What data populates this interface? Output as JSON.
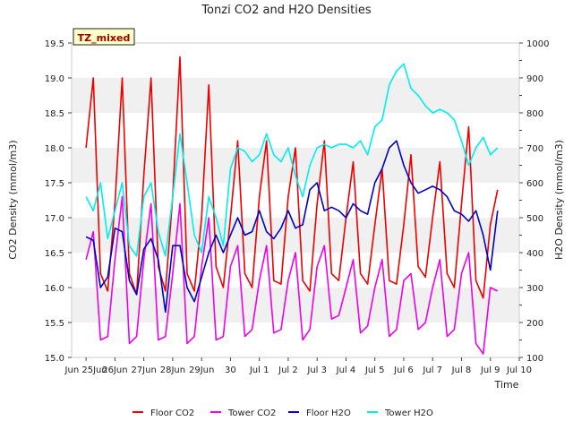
{
  "chart_data": {
    "type": "line",
    "title": "Tonzi CO2 and H2O Densities",
    "badge": "TZ_mixed",
    "xlabel": "Time",
    "ylabel_left": "CO2 Density (mmol/m3)",
    "ylabel_right": "H2O Density (mmol/m3)",
    "xlim": [
      "2024-06-24 12:00",
      "2024-07-10 00:00"
    ],
    "x_tick_labels": [
      "Jun 25Jun",
      "26Jun",
      "27Jun",
      "28Jun",
      "29Jun",
      "30",
      "Jul 1",
      "Jul 2",
      "Jul 3",
      "Jul 4",
      "Jul 5",
      "Jul 6",
      "Jul 7",
      "Jul 8",
      "Jul 9",
      "Jul 10"
    ],
    "ylim_left": [
      15.0,
      19.5
    ],
    "y_ticks_left": [
      "15.0",
      "15.5",
      "16.0",
      "16.5",
      "17.0",
      "17.5",
      "18.0",
      "18.5",
      "19.0",
      "19.5"
    ],
    "ylim_right": [
      100,
      1000
    ],
    "y_ticks_right": [
      "100",
      "200",
      "300",
      "400",
      "500",
      "600",
      "700",
      "800",
      "900",
      "1000"
    ],
    "grid": "horizontal bands",
    "legend_position": "bottom",
    "series": [
      {
        "name": "Floor CO2",
        "axis": "left",
        "color": "#ee0000",
        "x": [
          "Jun 25 00:00",
          "Jun 25 06:00",
          "Jun 25 12:00",
          "Jun 25 18:00",
          "Jun 26 00:00",
          "Jun 26 06:00",
          "Jun 26 12:00",
          "Jun 26 18:00",
          "Jun 27 00:00",
          "Jun 27 06:00",
          "Jun 27 12:00",
          "Jun 27 18:00",
          "Jun 28 00:00",
          "Jun 28 06:00",
          "Jun 28 12:00",
          "Jun 28 18:00",
          "Jun 29 00:00",
          "Jun 29 06:00",
          "Jun 29 12:00",
          "Jun 29 18:00",
          "Jun 30 00:00",
          "Jun 30 06:00",
          "Jun 30 12:00",
          "Jun 30 18:00",
          "Jul 1 00:00",
          "Jul 1 06:00",
          "Jul 1 12:00",
          "Jul 1 18:00",
          "Jul 2 00:00",
          "Jul 2 06:00",
          "Jul 2 12:00",
          "Jul 2 18:00",
          "Jul 3 00:00",
          "Jul 3 06:00",
          "Jul 3 12:00",
          "Jul 3 18:00",
          "Jul 4 00:00",
          "Jul 4 06:00",
          "Jul 4 12:00",
          "Jul 4 18:00",
          "Jul 5 00:00",
          "Jul 5 06:00",
          "Jul 5 12:00",
          "Jul 5 18:00",
          "Jul 6 00:00",
          "Jul 6 06:00",
          "Jul 6 12:00",
          "Jul 6 18:00",
          "Jul 7 00:00",
          "Jul 7 06:00",
          "Jul 7 12:00",
          "Jul 7 18:00",
          "Jul 8 00:00",
          "Jul 8 06:00",
          "Jul 8 12:00",
          "Jul 8 18:00",
          "Jul 9 00:00",
          "Jul 9 06:00"
        ],
        "y": [
          18.0,
          19.0,
          16.2,
          15.95,
          17.2,
          19.0,
          16.2,
          15.9,
          17.6,
          19.0,
          16.3,
          15.95,
          17.3,
          19.3,
          16.2,
          15.95,
          17.0,
          18.9,
          16.3,
          16.0,
          17.0,
          18.1,
          16.2,
          16.0,
          17.3,
          18.1,
          16.1,
          16.05,
          17.3,
          18.0,
          16.1,
          15.95,
          17.2,
          18.1,
          16.2,
          16.1,
          17.0,
          17.8,
          16.2,
          16.05,
          16.9,
          17.7,
          16.1,
          16.05,
          16.9,
          17.9,
          16.3,
          16.15,
          17.0,
          17.8,
          16.2,
          16.0,
          17.2,
          18.3,
          16.1,
          15.85,
          16.9,
          17.4
        ]
      },
      {
        "name": "Tower CO2",
        "axis": "left",
        "color": "#ee00ee",
        "x": [
          "Jun 25 00:00",
          "Jun 25 06:00",
          "Jun 25 12:00",
          "Jun 25 18:00",
          "Jun 26 00:00",
          "Jun 26 06:00",
          "Jun 26 12:00",
          "Jun 26 18:00",
          "Jun 27 00:00",
          "Jun 27 06:00",
          "Jun 27 12:00",
          "Jun 27 18:00",
          "Jun 28 00:00",
          "Jun 28 06:00",
          "Jun 28 12:00",
          "Jun 28 18:00",
          "Jun 29 00:00",
          "Jun 29 06:00",
          "Jun 29 12:00",
          "Jun 29 18:00",
          "Jun 30 00:00",
          "Jun 30 06:00",
          "Jun 30 12:00",
          "Jun 30 18:00",
          "Jul 1 00:00",
          "Jul 1 06:00",
          "Jul 1 12:00",
          "Jul 1 18:00",
          "Jul 2 00:00",
          "Jul 2 06:00",
          "Jul 2 12:00",
          "Jul 2 18:00",
          "Jul 3 00:00",
          "Jul 3 06:00",
          "Jul 3 12:00",
          "Jul 3 18:00",
          "Jul 4 00:00",
          "Jul 4 06:00",
          "Jul 4 12:00",
          "Jul 4 18:00",
          "Jul 5 00:00",
          "Jul 5 06:00",
          "Jul 5 12:00",
          "Jul 5 18:00",
          "Jul 6 00:00",
          "Jul 6 06:00",
          "Jul 6 12:00",
          "Jul 6 18:00",
          "Jul 7 00:00",
          "Jul 7 06:00",
          "Jul 7 12:00",
          "Jul 7 18:00",
          "Jul 8 00:00",
          "Jul 8 06:00",
          "Jul 8 12:00",
          "Jul 8 18:00",
          "Jul 9 00:00",
          "Jul 9 06:00"
        ],
        "y": [
          16.4,
          16.8,
          15.25,
          15.3,
          16.4,
          17.3,
          15.2,
          15.3,
          16.4,
          17.2,
          15.25,
          15.3,
          16.2,
          17.2,
          15.2,
          15.3,
          16.3,
          17.0,
          15.25,
          15.3,
          16.3,
          16.6,
          15.3,
          15.4,
          16.1,
          16.6,
          15.35,
          15.4,
          16.1,
          16.5,
          15.25,
          15.4,
          16.3,
          16.6,
          15.55,
          15.6,
          16.0,
          16.4,
          15.35,
          15.45,
          16.0,
          16.4,
          15.3,
          15.4,
          16.1,
          16.2,
          15.4,
          15.5,
          16.0,
          16.4,
          15.3,
          15.4,
          16.2,
          16.5,
          15.2,
          15.05,
          16.0,
          15.95
        ]
      },
      {
        "name": "Floor H2O",
        "axis": "right",
        "color": "#0000cc",
        "x": [
          "Jun 25 00:00",
          "Jun 25 06:00",
          "Jun 25 12:00",
          "Jun 25 18:00",
          "Jun 26 00:00",
          "Jun 26 06:00",
          "Jun 26 12:00",
          "Jun 26 18:00",
          "Jun 27 00:00",
          "Jun 27 06:00",
          "Jun 27 12:00",
          "Jun 27 18:00",
          "Jun 28 00:00",
          "Jun 28 06:00",
          "Jun 28 12:00",
          "Jun 28 18:00",
          "Jun 29 00:00",
          "Jun 29 06:00",
          "Jun 29 12:00",
          "Jun 29 18:00",
          "Jun 30 00:00",
          "Jun 30 06:00",
          "Jun 30 12:00",
          "Jun 30 18:00",
          "Jul 1 00:00",
          "Jul 1 06:00",
          "Jul 1 12:00",
          "Jul 1 18:00",
          "Jul 2 00:00",
          "Jul 2 06:00",
          "Jul 2 12:00",
          "Jul 2 18:00",
          "Jul 3 00:00",
          "Jul 3 06:00",
          "Jul 3 12:00",
          "Jul 3 18:00",
          "Jul 4 00:00",
          "Jul 4 06:00",
          "Jul 4 12:00",
          "Jul 4 18:00",
          "Jul 5 00:00",
          "Jul 5 06:00",
          "Jul 5 12:00",
          "Jul 5 18:00",
          "Jul 6 00:00",
          "Jul 6 06:00",
          "Jul 6 12:00",
          "Jul 6 18:00",
          "Jul 7 00:00",
          "Jul 7 06:00",
          "Jul 7 12:00",
          "Jul 7 18:00",
          "Jul 8 00:00",
          "Jul 8 06:00",
          "Jul 8 12:00",
          "Jul 8 18:00",
          "Jul 9 00:00",
          "Jul 9 06:00"
        ],
        "y": [
          445,
          435,
          300,
          330,
          470,
          460,
          320,
          280,
          410,
          440,
          380,
          230,
          420,
          420,
          300,
          260,
          330,
          400,
          450,
          400,
          450,
          500,
          450,
          460,
          520,
          460,
          440,
          470,
          520,
          470,
          480,
          580,
          600,
          520,
          530,
          520,
          500,
          540,
          520,
          510,
          600,
          640,
          700,
          720,
          650,
          600,
          570,
          580,
          590,
          580,
          560,
          520,
          510,
          490,
          520,
          450,
          350,
          520
        ]
      },
      {
        "name": "Tower H2O",
        "axis": "right",
        "color": "#00eeee",
        "x": [
          "Jun 25 00:00",
          "Jun 25 06:00",
          "Jun 25 12:00",
          "Jun 25 18:00",
          "Jun 26 00:00",
          "Jun 26 06:00",
          "Jun 26 12:00",
          "Jun 26 18:00",
          "Jun 27 00:00",
          "Jun 27 06:00",
          "Jun 27 12:00",
          "Jun 27 18:00",
          "Jun 28 00:00",
          "Jun 28 06:00",
          "Jun 28 12:00",
          "Jun 28 18:00",
          "Jun 29 00:00",
          "Jun 29 06:00",
          "Jun 29 12:00",
          "Jun 29 18:00",
          "Jun 30 00:00",
          "Jun 30 06:00",
          "Jun 30 12:00",
          "Jun 30 18:00",
          "Jul 1 00:00",
          "Jul 1 06:00",
          "Jul 1 12:00",
          "Jul 1 18:00",
          "Jul 2 00:00",
          "Jul 2 06:00",
          "Jul 2 12:00",
          "Jul 2 18:00",
          "Jul 3 00:00",
          "Jul 3 06:00",
          "Jul 3 12:00",
          "Jul 3 18:00",
          "Jul 4 00:00",
          "Jul 4 06:00",
          "Jul 4 12:00",
          "Jul 4 18:00",
          "Jul 5 00:00",
          "Jul 5 06:00",
          "Jul 5 12:00",
          "Jul 5 18:00",
          "Jul 6 00:00",
          "Jul 6 06:00",
          "Jul 6 12:00",
          "Jul 6 18:00",
          "Jul 7 00:00",
          "Jul 7 06:00",
          "Jul 7 12:00",
          "Jul 7 18:00",
          "Jul 8 00:00",
          "Jul 8 06:00",
          "Jul 8 12:00",
          "Jul 8 18:00",
          "Jul 9 00:00",
          "Jul 9 06:00"
        ],
        "y": [
          560,
          520,
          600,
          440,
          520,
          600,
          420,
          390,
          560,
          600,
          460,
          390,
          560,
          740,
          600,
          450,
          400,
          560,
          500,
          420,
          640,
          700,
          690,
          660,
          680,
          740,
          680,
          660,
          700,
          620,
          560,
          650,
          700,
          710,
          700,
          710,
          710,
          700,
          720,
          680,
          760,
          780,
          880,
          920,
          940,
          870,
          850,
          820,
          800,
          810,
          800,
          780,
          720,
          650,
          700,
          730,
          680,
          700
        ]
      }
    ]
  }
}
